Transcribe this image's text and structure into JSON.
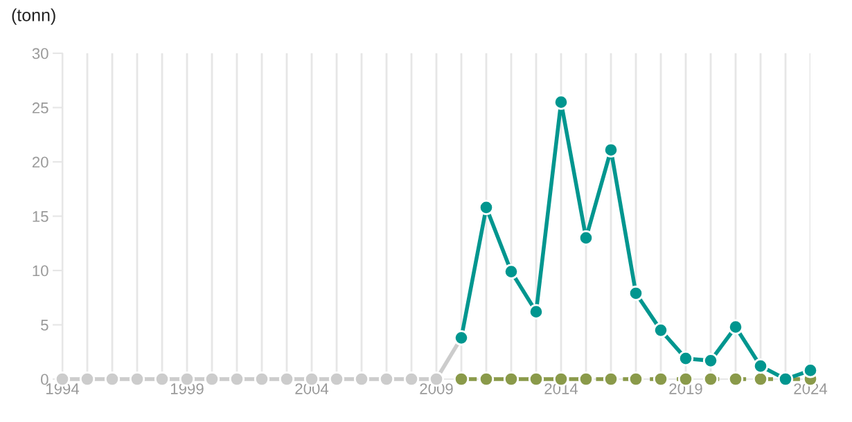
{
  "chart_data": {
    "type": "line",
    "ylabel": "(tonn)",
    "series": [
      {
        "color": "#cccccc",
        "x": [
          1994,
          1995,
          1996,
          1997,
          1998,
          1999,
          2000,
          2001,
          2002,
          2003,
          2004,
          2005,
          2006,
          2007,
          2008,
          2009,
          2010
        ],
        "values": [
          0,
          0,
          0,
          0,
          0,
          0,
          0,
          0,
          0,
          0,
          0,
          0,
          0,
          0,
          0,
          0,
          3.8
        ]
      },
      {
        "color": "#8a9a4a",
        "line_style": "dashed",
        "x": [
          2010,
          2011,
          2012,
          2013,
          2014,
          2015,
          2016,
          2017,
          2018,
          2019,
          2020,
          2021,
          2022,
          2023,
          2024
        ],
        "values": [
          0,
          0,
          0,
          0,
          0,
          0,
          0,
          0,
          0,
          0,
          0,
          0,
          0,
          0,
          0
        ]
      },
      {
        "color": "#00968f",
        "x": [
          2010,
          2011,
          2012,
          2013,
          2014,
          2015,
          2016,
          2017,
          2018,
          2019,
          2020,
          2021,
          2022,
          2023,
          2024
        ],
        "values": [
          3.8,
          15.8,
          9.9,
          6.2,
          25.5,
          13.0,
          21.1,
          7.9,
          4.5,
          1.9,
          1.7,
          4.8,
          1.2,
          0,
          0.8
        ]
      }
    ],
    "xlim": [
      1994,
      2024
    ],
    "xticks": [
      1994,
      {
        "value": 1995,
        "label": null
      },
      {
        "value": 1996,
        "label": null
      },
      {
        "value": 1997,
        "label": null
      },
      {
        "value": 1998,
        "label": null
      },
      1999,
      {
        "value": 2000,
        "label": null
      },
      {
        "value": 2001,
        "label": null
      },
      {
        "value": 2002,
        "label": null
      },
      {
        "value": 2003,
        "label": null
      },
      2004,
      {
        "value": 2005,
        "label": null
      },
      {
        "value": 2006,
        "label": null
      },
      {
        "value": 2007,
        "label": null
      },
      {
        "value": 2008,
        "label": null
      },
      2009,
      {
        "value": 2010,
        "label": null
      },
      {
        "value": 2011,
        "label": null
      },
      {
        "value": 2012,
        "label": null
      },
      {
        "value": 2013,
        "label": null
      },
      2014,
      {
        "value": 2015,
        "label": null
      },
      {
        "value": 2016,
        "label": null
      },
      {
        "value": 2017,
        "label": null
      },
      {
        "value": 2018,
        "label": null
      },
      2019,
      {
        "value": 2020,
        "label": null
      },
      {
        "value": 2021,
        "label": null
      },
      {
        "value": 2022,
        "label": null
      },
      {
        "value": 2023,
        "label": null
      },
      2024
    ],
    "ylim": [
      0,
      30
    ],
    "yticks": [
      0,
      5,
      10,
      15,
      20,
      25,
      30
    ],
    "grid": "x",
    "marker": "circle",
    "line_style": "solid",
    "legend": false
  }
}
